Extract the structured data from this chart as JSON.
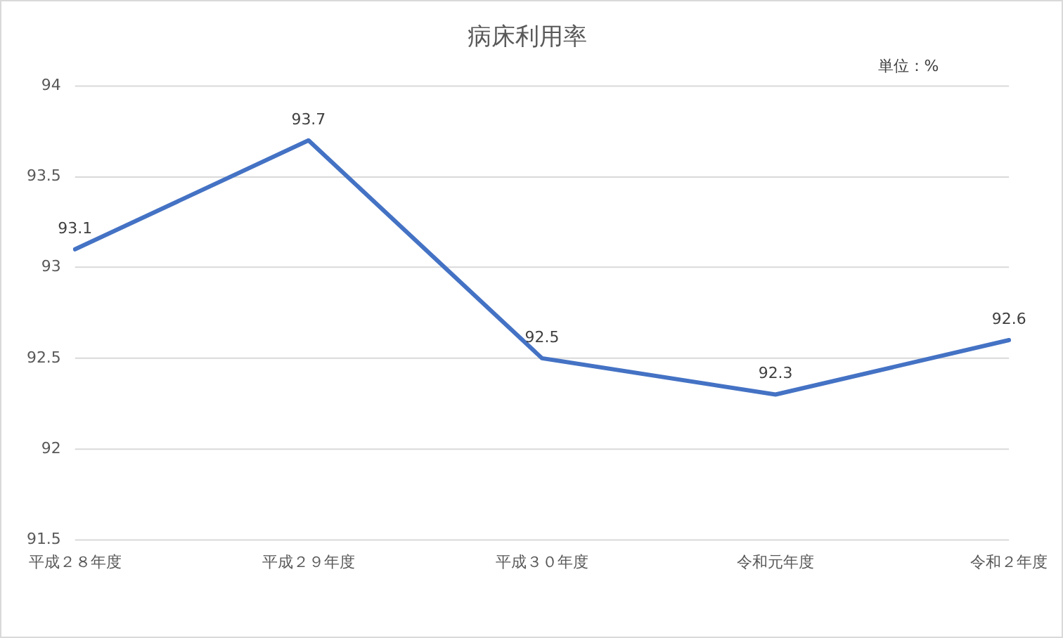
{
  "chart_data": {
    "type": "line",
    "title": "病床利用率",
    "categories": [
      "平成２８年度",
      "平成２９年度",
      "平成３０年度",
      "令和元年度",
      "令和２年度"
    ],
    "series": [
      {
        "color": "#4472c4",
        "values": [
          93.1,
          93.7,
          92.5,
          92.3,
          92.6
        ]
      }
    ],
    "ylim": [
      91.5,
      94
    ],
    "yticks": [
      91.5,
      92,
      92.5,
      93,
      93.5,
      94
    ],
    "grid": "y",
    "legend": false,
    "marker": "none",
    "line_style": "solid",
    "data_labels": true,
    "annotations": [
      "単位：%"
    ]
  }
}
